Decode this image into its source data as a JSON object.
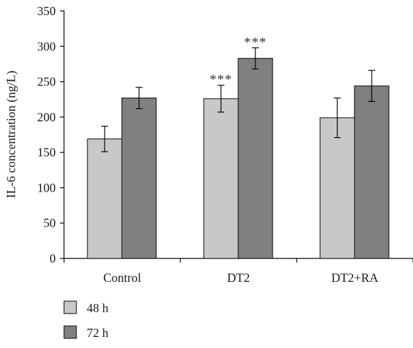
{
  "chart_data": {
    "type": "bar",
    "title": "",
    "xlabel": "",
    "ylabel": "IL-6 concentration (ng/L)",
    "ylim": [
      0,
      350
    ],
    "yticks": [
      0,
      50,
      100,
      150,
      200,
      250,
      300,
      350
    ],
    "categories": [
      "Control",
      "DT2",
      "DT2+RA"
    ],
    "series": [
      {
        "name": "48 h",
        "color": "#c8c8c8",
        "values": [
          169,
          226,
          199
        ],
        "errors": [
          18,
          19,
          28
        ]
      },
      {
        "name": "72 h",
        "color": "#808080",
        "values": [
          227,
          283,
          244
        ],
        "errors": [
          15,
          15,
          22
        ]
      }
    ],
    "annotations": [
      {
        "text": "***",
        "category": "DT2",
        "series": "48 h"
      },
      {
        "text": "***",
        "category": "DT2",
        "series": "72 h"
      }
    ],
    "grid": false,
    "legend_position": "bottom-left"
  }
}
